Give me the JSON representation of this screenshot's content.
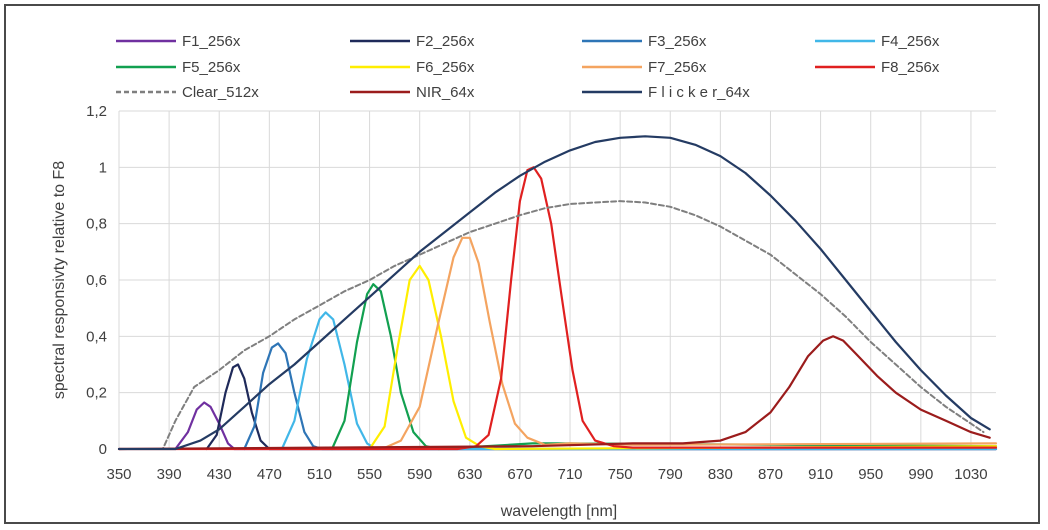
{
  "chart_data": {
    "type": "line",
    "xlabel": "wavelength [nm]",
    "ylabel": "spectral responsivty relative to F8",
    "xlim": [
      350,
      1050
    ],
    "ylim": [
      0,
      1.2
    ],
    "x_ticks": [
      "350",
      "390",
      "430",
      "470",
      "510",
      "550",
      "590",
      "630",
      "670",
      "710",
      "750",
      "790",
      "830",
      "870",
      "910",
      "950",
      "990",
      "1030"
    ],
    "y_ticks": [
      "0",
      "0,2",
      "0,4",
      "0,6",
      "0,8",
      "1",
      "1,2"
    ],
    "grid": "on",
    "legend_position": "top",
    "series": [
      {
        "name": "F1_256x",
        "color": "#7030a0",
        "dash": false,
        "points": [
          [
            395,
            0
          ],
          [
            405,
            0.06
          ],
          [
            412,
            0.14
          ],
          [
            418,
            0.165
          ],
          [
            423,
            0.15
          ],
          [
            430,
            0.09
          ],
          [
            437,
            0.02
          ],
          [
            442,
            0
          ],
          [
            1050,
            0
          ]
        ]
      },
      {
        "name": "F2_256x",
        "color": "#1f2a5a",
        "dash": false,
        "points": [
          [
            420,
            0
          ],
          [
            428,
            0.05
          ],
          [
            435,
            0.2
          ],
          [
            441,
            0.29
          ],
          [
            445,
            0.3
          ],
          [
            450,
            0.25
          ],
          [
            456,
            0.13
          ],
          [
            463,
            0.03
          ],
          [
            470,
            0
          ],
          [
            1050,
            0
          ]
        ]
      },
      {
        "name": "F3_256x",
        "color": "#2e75b6",
        "dash": false,
        "points": [
          [
            450,
            0
          ],
          [
            458,
            0.08
          ],
          [
            465,
            0.27
          ],
          [
            472,
            0.36
          ],
          [
            477,
            0.375
          ],
          [
            483,
            0.34
          ],
          [
            490,
            0.2
          ],
          [
            498,
            0.06
          ],
          [
            505,
            0.01
          ],
          [
            512,
            0
          ],
          [
            1050,
            0
          ]
        ]
      },
      {
        "name": "F4_256x",
        "color": "#41b7e8",
        "dash": false,
        "points": [
          [
            480,
            0
          ],
          [
            490,
            0.1
          ],
          [
            500,
            0.32
          ],
          [
            510,
            0.46
          ],
          [
            515,
            0.485
          ],
          [
            521,
            0.46
          ],
          [
            530,
            0.3
          ],
          [
            540,
            0.09
          ],
          [
            548,
            0.02
          ],
          [
            555,
            0
          ],
          [
            1050,
            0
          ]
        ]
      },
      {
        "name": "F5_256x",
        "color": "#12a050",
        "dash": false,
        "points": [
          [
            520,
            0
          ],
          [
            530,
            0.1
          ],
          [
            540,
            0.38
          ],
          [
            548,
            0.55
          ],
          [
            553,
            0.585
          ],
          [
            559,
            0.56
          ],
          [
            567,
            0.4
          ],
          [
            575,
            0.2
          ],
          [
            585,
            0.06
          ],
          [
            595,
            0.01
          ],
          [
            605,
            0
          ],
          [
            680,
            0.02
          ],
          [
            700,
            0.02
          ],
          [
            1050,
            0.01
          ]
        ]
      },
      {
        "name": "F6_256x",
        "color": "#ffee00",
        "dash": false,
        "points": [
          [
            550,
            0
          ],
          [
            562,
            0.08
          ],
          [
            572,
            0.35
          ],
          [
            582,
            0.6
          ],
          [
            590,
            0.65
          ],
          [
            597,
            0.6
          ],
          [
            607,
            0.4
          ],
          [
            617,
            0.17
          ],
          [
            627,
            0.04
          ],
          [
            638,
            0.01
          ],
          [
            650,
            0
          ],
          [
            1050,
            0.01
          ]
        ]
      },
      {
        "name": "F7_256x",
        "color": "#f4a460",
        "dash": false,
        "points": [
          [
            560,
            0
          ],
          [
            575,
            0.03
          ],
          [
            590,
            0.15
          ],
          [
            605,
            0.45
          ],
          [
            617,
            0.68
          ],
          [
            624,
            0.75
          ],
          [
            630,
            0.75
          ],
          [
            637,
            0.66
          ],
          [
            646,
            0.45
          ],
          [
            656,
            0.23
          ],
          [
            666,
            0.09
          ],
          [
            676,
            0.04
          ],
          [
            690,
            0.015
          ],
          [
            710,
            0.02
          ],
          [
            760,
            0.015
          ],
          [
            1050,
            0.02
          ]
        ]
      },
      {
        "name": "F8_256x",
        "color": "#e02020",
        "dash": false,
        "points": [
          [
            350,
            0
          ],
          [
            620,
            0
          ],
          [
            635,
            0.01
          ],
          [
            645,
            0.05
          ],
          [
            655,
            0.25
          ],
          [
            663,
            0.6
          ],
          [
            670,
            0.88
          ],
          [
            676,
            0.99
          ],
          [
            681,
            1.0
          ],
          [
            687,
            0.96
          ],
          [
            695,
            0.8
          ],
          [
            703,
            0.55
          ],
          [
            712,
            0.28
          ],
          [
            720,
            0.1
          ],
          [
            730,
            0.03
          ],
          [
            745,
            0.01
          ],
          [
            760,
            0.005
          ],
          [
            1050,
            0.005
          ]
        ]
      },
      {
        "name": "Clear_512x",
        "color": "#7f7f7f",
        "dash": true,
        "points": [
          [
            350,
            0
          ],
          [
            385,
            0
          ],
          [
            395,
            0.1
          ],
          [
            410,
            0.22
          ],
          [
            430,
            0.28
          ],
          [
            450,
            0.35
          ],
          [
            470,
            0.4
          ],
          [
            490,
            0.46
          ],
          [
            510,
            0.51
          ],
          [
            530,
            0.56
          ],
          [
            550,
            0.6
          ],
          [
            570,
            0.65
          ],
          [
            590,
            0.69
          ],
          [
            610,
            0.73
          ],
          [
            630,
            0.77
          ],
          [
            650,
            0.8
          ],
          [
            670,
            0.83
          ],
          [
            690,
            0.855
          ],
          [
            710,
            0.87
          ],
          [
            730,
            0.875
          ],
          [
            750,
            0.88
          ],
          [
            770,
            0.875
          ],
          [
            790,
            0.86
          ],
          [
            810,
            0.83
          ],
          [
            830,
            0.79
          ],
          [
            850,
            0.74
          ],
          [
            870,
            0.69
          ],
          [
            890,
            0.62
          ],
          [
            910,
            0.55
          ],
          [
            930,
            0.47
          ],
          [
            950,
            0.38
          ],
          [
            970,
            0.3
          ],
          [
            990,
            0.22
          ],
          [
            1010,
            0.15
          ],
          [
            1030,
            0.09
          ],
          [
            1040,
            0.06
          ]
        ]
      },
      {
        "name": "NIR_64x",
        "color": "#9b1c1c",
        "dash": false,
        "points": [
          [
            350,
            0
          ],
          [
            680,
            0.01
          ],
          [
            720,
            0.015
          ],
          [
            760,
            0.02
          ],
          [
            800,
            0.02
          ],
          [
            830,
            0.03
          ],
          [
            850,
            0.06
          ],
          [
            870,
            0.13
          ],
          [
            885,
            0.22
          ],
          [
            900,
            0.33
          ],
          [
            912,
            0.385
          ],
          [
            920,
            0.4
          ],
          [
            928,
            0.385
          ],
          [
            940,
            0.33
          ],
          [
            955,
            0.26
          ],
          [
            970,
            0.2
          ],
          [
            990,
            0.14
          ],
          [
            1010,
            0.1
          ],
          [
            1030,
            0.06
          ],
          [
            1045,
            0.04
          ]
        ]
      },
      {
        "name": "F l i c k e r_64x",
        "color": "#243b63",
        "dash": false,
        "points": [
          [
            350,
            0
          ],
          [
            395,
            0
          ],
          [
            415,
            0.03
          ],
          [
            430,
            0.07
          ],
          [
            450,
            0.15
          ],
          [
            470,
            0.23
          ],
          [
            490,
            0.3
          ],
          [
            510,
            0.38
          ],
          [
            530,
            0.46
          ],
          [
            550,
            0.54
          ],
          [
            570,
            0.62
          ],
          [
            590,
            0.7
          ],
          [
            610,
            0.77
          ],
          [
            630,
            0.84
          ],
          [
            650,
            0.91
          ],
          [
            670,
            0.97
          ],
          [
            690,
            1.02
          ],
          [
            710,
            1.06
          ],
          [
            730,
            1.09
          ],
          [
            750,
            1.105
          ],
          [
            770,
            1.11
          ],
          [
            790,
            1.105
          ],
          [
            810,
            1.08
          ],
          [
            830,
            1.04
          ],
          [
            850,
            0.98
          ],
          [
            870,
            0.9
          ],
          [
            890,
            0.81
          ],
          [
            910,
            0.71
          ],
          [
            930,
            0.6
          ],
          [
            950,
            0.49
          ],
          [
            970,
            0.38
          ],
          [
            990,
            0.28
          ],
          [
            1010,
            0.19
          ],
          [
            1030,
            0.11
          ],
          [
            1045,
            0.07
          ]
        ]
      }
    ]
  }
}
